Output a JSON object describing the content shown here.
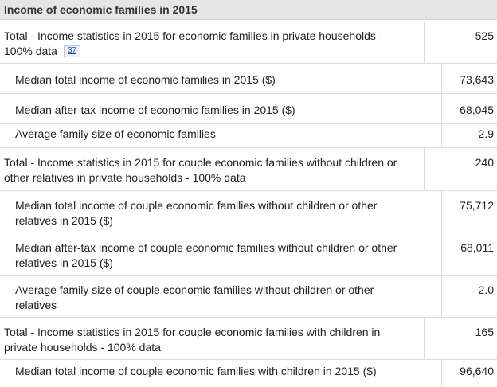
{
  "header": {
    "title": "Income of economic families in 2015"
  },
  "rows": [
    {
      "label": "Total - Income statistics in 2015 for economic families in private households - 100% data",
      "value": "525",
      "footnote": "37"
    },
    {
      "label": "Median total income of economic families in 2015 ($)",
      "value": "73,643"
    },
    {
      "label": "Median after-tax income of economic families in 2015 ($)",
      "value": "68,045"
    },
    {
      "label": "Average family size of economic families",
      "value": "2.9"
    },
    {
      "label": "Total - Income statistics in 2015 for couple economic families without children or other relatives in private households - 100% data",
      "value": "240"
    },
    {
      "label": "Median total income of couple economic families without children or other relatives in 2015 ($)",
      "value": "75,712"
    },
    {
      "label": "Median after-tax income of couple economic families without children or other relatives in 2015 ($)",
      "value": "68,011"
    },
    {
      "label": "Average family size of couple economic families without children or other relatives",
      "value": "2.0"
    },
    {
      "label": "Total - Income statistics in 2015 for couple economic families with children in private households - 100% data",
      "value": "165"
    },
    {
      "label": "Median total income of couple economic families with children in 2015 ($)",
      "value": "96,640"
    }
  ]
}
